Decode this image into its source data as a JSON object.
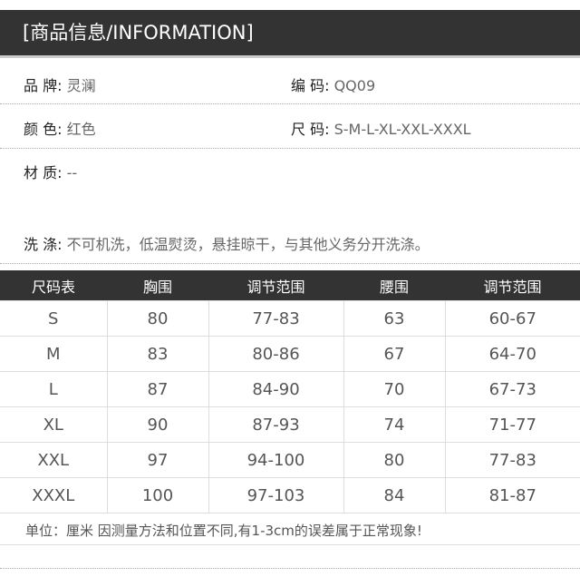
{
  "header": {
    "title": "[商品信息/INFORMATION]"
  },
  "info": {
    "brand_label": "品 牌:",
    "brand": "灵澜",
    "code_label": "编 码:",
    "code": "QQ09",
    "color_label": "颜 色:",
    "color": "红色",
    "size_label": "尺 码:",
    "sizes": "S-M-L-XL-XXL-XXXL",
    "material_label": "材 质:",
    "material": "--",
    "wash_label": "洗 涤:",
    "wash": "不可机洗，低温熨烫，悬挂晾干，与其他义务分开洗涤。"
  },
  "size_table": {
    "headers": [
      "尺码表",
      "胸围",
      "调节范围",
      "腰围",
      "调节范围"
    ],
    "rows": [
      [
        "S",
        "80",
        "77-83",
        "63",
        "60-67"
      ],
      [
        "M",
        "83",
        "80-86",
        "67",
        "64-70"
      ],
      [
        "L",
        "87",
        "84-90",
        "70",
        "67-73"
      ],
      [
        "XL",
        "90",
        "87-93",
        "74",
        "71-77"
      ],
      [
        "XXL",
        "97",
        "94-100",
        "80",
        "77-83"
      ],
      [
        "XXXL",
        "100",
        "97-103",
        "84",
        "81-87"
      ]
    ]
  },
  "note": "单位：厘米 因测量方法和位置不同,有1-3cm的误差属于正常现象!"
}
